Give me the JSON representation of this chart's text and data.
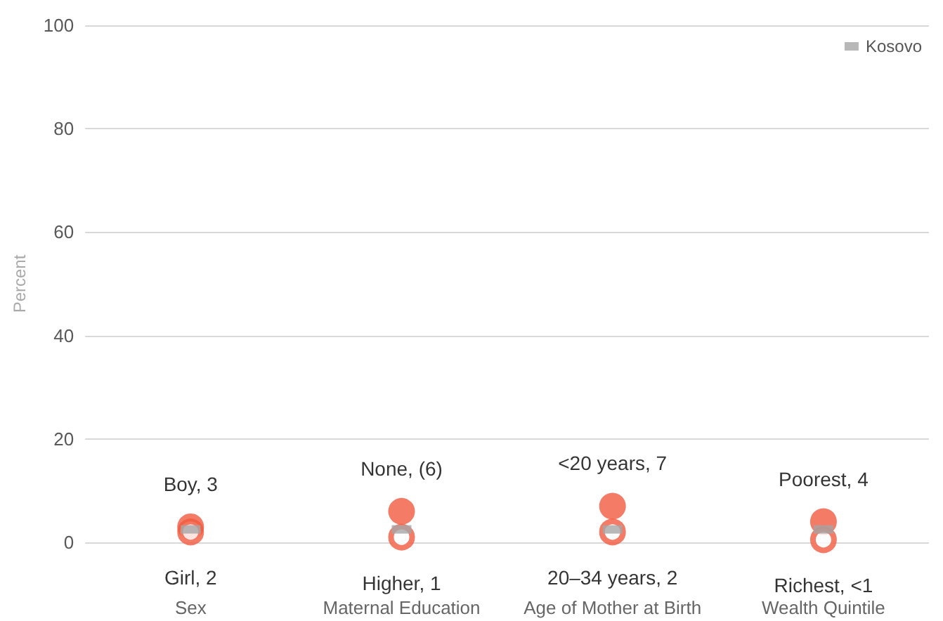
{
  "chart_data": {
    "type": "scatter",
    "ylabel": "Percent",
    "categories": [
      "Sex",
      "Maternal Education",
      "Age of Mother at Birth",
      "Wealth Quintile"
    ],
    "ylim": [
      0,
      100
    ],
    "yticks": [
      0,
      20,
      40,
      60,
      80,
      100
    ],
    "grid": "y",
    "legend": "top right",
    "marker": "circle",
    "series": [
      {
        "color": "#f15a3f",
        "values": [
          3,
          6,
          7,
          4
        ],
        "value_labels": [
          "Boy, 3",
          "None, (6)",
          "<20 years, 7",
          "Poorest, 4"
        ]
      },
      {
        "color": "#f15a3f",
        "values": [
          2,
          1,
          2,
          0.5
        ],
        "value_labels": [
          "Girl, 2",
          "Higher, 1",
          "20–34 years, 2",
          "Richest, <1"
        ]
      },
      {
        "name": "Kosovo",
        "color": "#a6a6a6",
        "marker": "square",
        "values": [
          2.5,
          2.5,
          2.5,
          2.5
        ]
      }
    ]
  }
}
